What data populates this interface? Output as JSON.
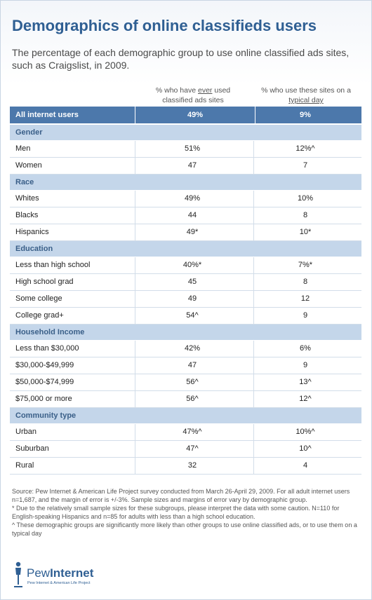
{
  "title": "Demographics of online classifieds users",
  "subtitle": "The percentage of each demographic group to use online classified ads sites, such as Craigslist, in 2009.",
  "columns": {
    "c1_pre": "% who have ",
    "c1_u": "ever",
    "c1_post": " used classified ads sites",
    "c2_pre": "% who use these sites on a ",
    "c2_u": "typical day"
  },
  "rows": [
    {
      "type": "total",
      "label": "All internet users",
      "v1": "49%",
      "v2": "9%"
    },
    {
      "type": "section",
      "label": "Gender"
    },
    {
      "type": "data",
      "label": "Men",
      "v1": "51%",
      "v2": "12%^"
    },
    {
      "type": "data",
      "label": "Women",
      "v1": "47",
      "v2": "7"
    },
    {
      "type": "section",
      "label": "Race"
    },
    {
      "type": "data",
      "label": "Whites",
      "v1": "49%",
      "v2": "10%"
    },
    {
      "type": "data",
      "label": "Blacks",
      "v1": "44",
      "v2": "8"
    },
    {
      "type": "data",
      "label": "Hispanics",
      "v1": "49*",
      "v2": "10*"
    },
    {
      "type": "section",
      "label": "Education"
    },
    {
      "type": "data",
      "label": "Less than high school",
      "v1": "40%*",
      "v2": "7%*"
    },
    {
      "type": "data",
      "label": "High school grad",
      "v1": "45",
      "v2": "8"
    },
    {
      "type": "data",
      "label": "Some college",
      "v1": "49",
      "v2": "12"
    },
    {
      "type": "data",
      "label": "College grad+",
      "v1": "54^",
      "v2": "9"
    },
    {
      "type": "section",
      "label": "Household Income"
    },
    {
      "type": "data",
      "label": "Less than $30,000",
      "v1": "42%",
      "v2": "6%"
    },
    {
      "type": "data",
      "label": "$30,000-$49,999",
      "v1": "47",
      "v2": "9"
    },
    {
      "type": "data",
      "label": "$50,000-$74,999",
      "v1": "56^",
      "v2": "13^"
    },
    {
      "type": "data",
      "label": "$75,000 or more",
      "v1": "56^",
      "v2": "12^"
    },
    {
      "type": "section",
      "label": "Community type"
    },
    {
      "type": "data",
      "label": "Urban",
      "v1": "47%^",
      "v2": "10%^"
    },
    {
      "type": "data",
      "label": "Suburban",
      "v1": "47^",
      "v2": "10^"
    },
    {
      "type": "data",
      "label": "Rural",
      "v1": "32",
      "v2": "4"
    }
  ],
  "notes": [
    "Source: Pew Internet & American Life Project survey conducted from March 26-April 29, 2009. For all adult internet users n=1,687, and the margin of error is +/-3%. Sample sizes and margins of error vary by demographic group.",
    "* Due to the relatively small sample sizes for these subgroups, please interpret the data with some caution. N=110 for English-speaking Hispanics and n=85 for adults with less than a high school education.",
    "^ These demographic groups are significantly more likely than other groups to use online classified ads, or to use them on a typical day"
  ],
  "logo": {
    "name_a": "Pew",
    "name_b": "Internet",
    "sub": "Pew Internet & American Life Project",
    "color": "#2f5f93"
  }
}
